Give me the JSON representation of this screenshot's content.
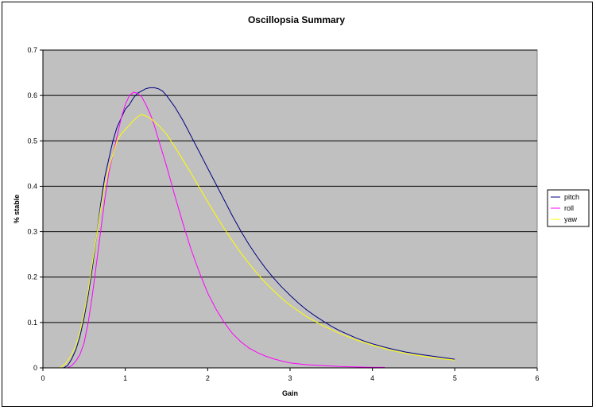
{
  "chart_data": {
    "type": "line",
    "title": "Oscillopsia Summary",
    "xlabel": "Gain",
    "ylabel": "% stable",
    "xlim": [
      0,
      6
    ],
    "ylim": [
      0,
      0.7
    ],
    "xticks": [
      "0",
      "1",
      "2",
      "3",
      "4",
      "5",
      "6"
    ],
    "yticks": [
      "0",
      "0.1",
      "0.2",
      "0.3",
      "0.4",
      "0.5",
      "0.6",
      "0.7"
    ],
    "grid": "horizontal",
    "legend_position": "right",
    "plot_background": "#c0c0c0",
    "series": [
      {
        "name": "pitch",
        "color": "#000080",
        "x": [
          0.25,
          0.3,
          0.35,
          0.4,
          0.45,
          0.5,
          0.55,
          0.6,
          0.65,
          0.7,
          0.75,
          0.8,
          0.85,
          0.9,
          0.95,
          1.0,
          1.05,
          1.1,
          1.15,
          1.2,
          1.25,
          1.3,
          1.35,
          1.4,
          1.45,
          1.5,
          1.6,
          1.7,
          1.8,
          1.9,
          2.0,
          2.1,
          2.2,
          2.3,
          2.4,
          2.5,
          2.6,
          2.7,
          2.8,
          2.9,
          3.0,
          3.1,
          3.2,
          3.3,
          3.4,
          3.5,
          3.6,
          3.7,
          3.8,
          3.9,
          4.0,
          4.2,
          4.4,
          4.6,
          4.8,
          5.0
        ],
        "y": [
          0.0,
          0.005,
          0.02,
          0.04,
          0.07,
          0.11,
          0.16,
          0.22,
          0.29,
          0.36,
          0.42,
          0.46,
          0.5,
          0.53,
          0.55,
          0.57,
          0.58,
          0.595,
          0.605,
          0.61,
          0.615,
          0.617,
          0.617,
          0.615,
          0.61,
          0.6,
          0.575,
          0.545,
          0.51,
          0.475,
          0.44,
          0.405,
          0.37,
          0.335,
          0.302,
          0.272,
          0.245,
          0.22,
          0.198,
          0.178,
          0.16,
          0.143,
          0.128,
          0.115,
          0.103,
          0.092,
          0.082,
          0.074,
          0.066,
          0.059,
          0.053,
          0.043,
          0.035,
          0.029,
          0.024,
          0.019
        ]
      },
      {
        "name": "roll",
        "color": "#ff00ff",
        "x": [
          0.3,
          0.35,
          0.4,
          0.45,
          0.5,
          0.55,
          0.6,
          0.65,
          0.7,
          0.75,
          0.8,
          0.85,
          0.9,
          0.95,
          1.0,
          1.05,
          1.1,
          1.15,
          1.2,
          1.25,
          1.3,
          1.35,
          1.4,
          1.5,
          1.6,
          1.7,
          1.8,
          1.9,
          2.0,
          2.1,
          2.2,
          2.3,
          2.4,
          2.5,
          2.6,
          2.7,
          2.8,
          2.9,
          3.0,
          3.2,
          3.4,
          3.6,
          3.8,
          4.0,
          4.15
        ],
        "y": [
          0.0,
          0.005,
          0.015,
          0.03,
          0.055,
          0.1,
          0.16,
          0.23,
          0.3,
          0.37,
          0.43,
          0.47,
          0.51,
          0.55,
          0.58,
          0.6,
          0.607,
          0.605,
          0.597,
          0.58,
          0.56,
          0.535,
          0.505,
          0.445,
          0.38,
          0.318,
          0.26,
          0.21,
          0.165,
          0.13,
          0.1,
          0.076,
          0.058,
          0.044,
          0.034,
          0.026,
          0.02,
          0.015,
          0.011,
          0.007,
          0.005,
          0.003,
          0.002,
          0.001,
          0.001
        ]
      },
      {
        "name": "yaw",
        "color": "#ffff00",
        "x": [
          0.2,
          0.25,
          0.3,
          0.35,
          0.4,
          0.45,
          0.5,
          0.55,
          0.6,
          0.65,
          0.7,
          0.75,
          0.8,
          0.85,
          0.9,
          0.95,
          1.0,
          1.05,
          1.1,
          1.15,
          1.2,
          1.25,
          1.3,
          1.35,
          1.4,
          1.5,
          1.6,
          1.7,
          1.8,
          1.9,
          2.0,
          2.1,
          2.2,
          2.3,
          2.4,
          2.5,
          2.6,
          2.7,
          2.8,
          2.9,
          3.0,
          3.2,
          3.4,
          3.6,
          3.8,
          4.0,
          4.2,
          4.4,
          4.6,
          4.8,
          5.0
        ],
        "y": [
          0.0,
          0.005,
          0.015,
          0.03,
          0.05,
          0.08,
          0.12,
          0.17,
          0.23,
          0.29,
          0.35,
          0.4,
          0.44,
          0.47,
          0.5,
          0.515,
          0.525,
          0.535,
          0.545,
          0.553,
          0.558,
          0.555,
          0.55,
          0.543,
          0.535,
          0.515,
          0.487,
          0.458,
          0.428,
          0.397,
          0.366,
          0.336,
          0.307,
          0.28,
          0.254,
          0.23,
          0.208,
          0.188,
          0.17,
          0.153,
          0.138,
          0.113,
          0.093,
          0.076,
          0.062,
          0.05,
          0.04,
          0.032,
          0.026,
          0.021,
          0.017
        ]
      }
    ]
  }
}
